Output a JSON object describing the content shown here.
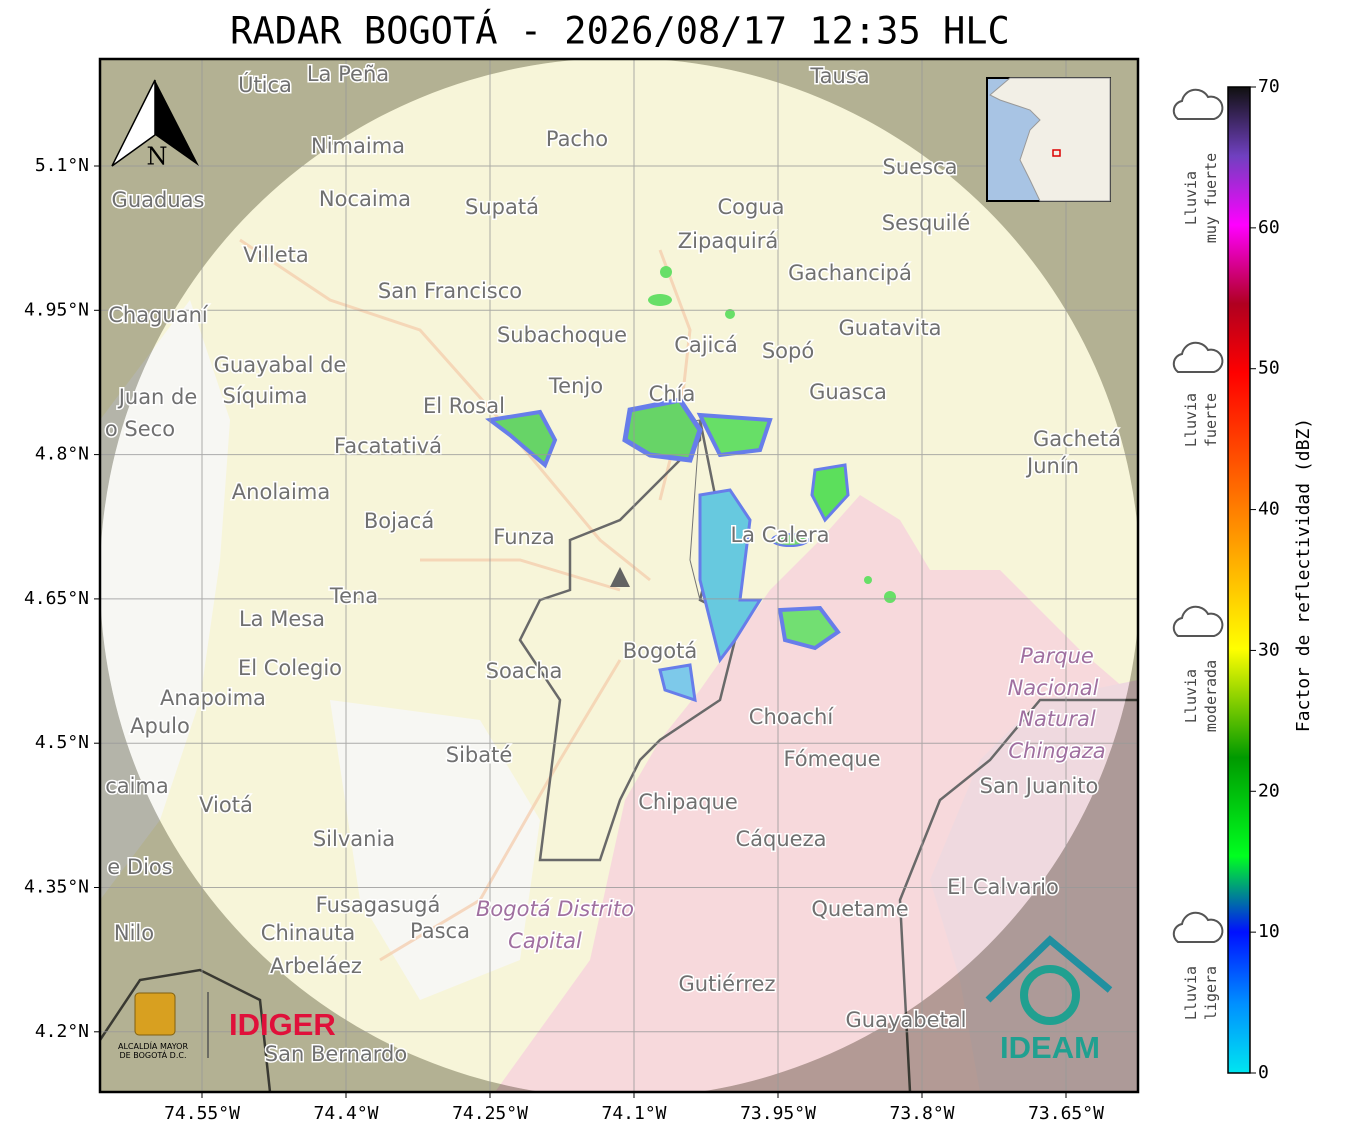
{
  "title": "RADAR BOGOTÁ - 2026/08/17 12:35 HLC",
  "map": {
    "lat_ticks": [
      "5.1°N",
      "4.95°N",
      "4.8°N",
      "4.65°N",
      "4.5°N",
      "4.35°N",
      "4.2°N"
    ],
    "lon_ticks": [
      "74.55°W",
      "74.4°W",
      "74.25°W",
      "74.1°W",
      "73.95°W",
      "73.8°W",
      "73.65°W"
    ],
    "north": "N",
    "places": [
      "La Peña",
      "Útica",
      "Tausa",
      "Pacho",
      "Nimaima",
      "Guaduas",
      "Nocaima",
      "Supatá",
      "Cogua",
      "Suesca",
      "Sesquilé",
      "Zipaquirá",
      "Villeta",
      "Gachancipá",
      "San Francisco",
      "Chaguaní",
      "Guatavita",
      "Subachoque",
      "Cajicá",
      "Sopó",
      "Guayabal de",
      "Síquima",
      "Tenjo",
      "Chía",
      "Guasca",
      "El Rosal",
      "Facatativá",
      "Gachetá",
      "Junín",
      "Anolaima",
      "Bojacá",
      "Funza",
      "La Calera",
      "Tena",
      "La Mesa",
      "Bogotá",
      "Soacha",
      "El Colegio",
      "Parque",
      "Nacional",
      "Natural",
      "Chingaza",
      "Anapoima",
      "Apulo",
      "Choachí",
      "Sibaté",
      "Fómeque",
      "San Juanito",
      "Chipaque",
      "Viotá",
      "Silvania",
      "Cáqueza",
      "El Calvario",
      "Quetame",
      "Fusagasugá",
      "Bogotá Distrito",
      "Capital",
      "Nilo",
      "Chinauta",
      "Pasca",
      "Arbeláez",
      "Gutiérrez",
      "Guayabetal",
      "San Bernardo",
      "Juan de",
      "o Seco",
      "caima",
      "e Dios"
    ]
  },
  "logos": {
    "alcaldia_1": "ALCALDÍA MAYOR",
    "alcaldia_2": "DE BOGOTÁ D.C.",
    "idiger": "IDIGER",
    "ideam": "IDEAM"
  },
  "colorbar": {
    "label": "Factor de reflectividad (dBZ)",
    "ticks": [
      0,
      10,
      20,
      30,
      40,
      50,
      60,
      70
    ],
    "categories": [
      {
        "line1": "Lluvia",
        "line2": "muy fuerte"
      },
      {
        "line1": "Lluvia",
        "line2": "fuerte"
      },
      {
        "line1": "Lluvia",
        "line2": "moderada"
      },
      {
        "line1": "Lluvia",
        "line2": "ligera"
      }
    ]
  }
}
